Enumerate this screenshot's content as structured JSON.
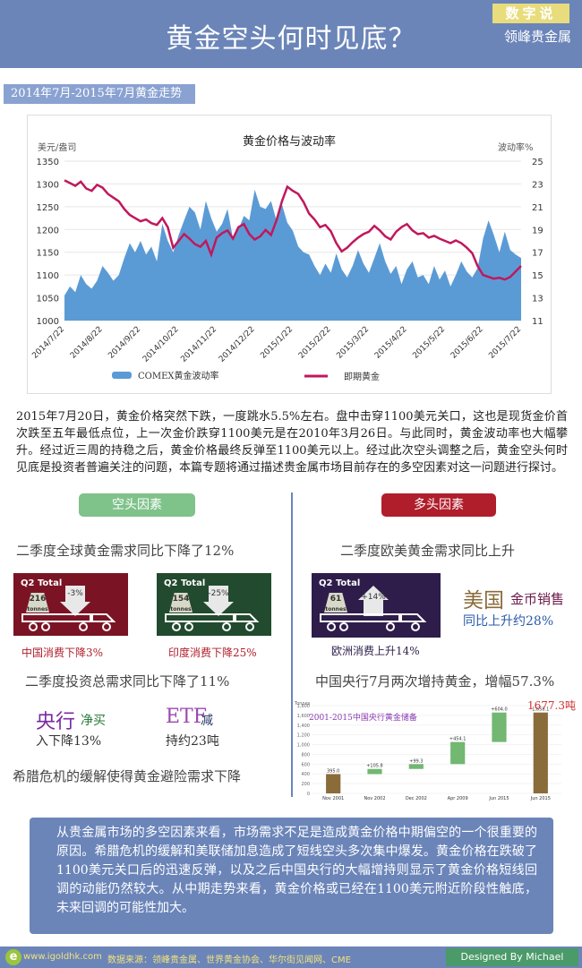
{
  "header": {
    "title": "黄金空头何时见底？",
    "badge": "数字说",
    "brand": "领峰贵金属"
  },
  "period_label": "2014年7月-2015年7月黄金走势",
  "chart_data": [
    {
      "type": "area+line",
      "title": "黄金价格与波动率",
      "ylabel_left": "美元/盎司",
      "ylabel_right": "波动率%",
      "left_ticks": [
        "1350",
        "1300",
        "1250",
        "1200",
        "1150",
        "1100",
        "1050",
        "1000"
      ],
      "right_ticks": [
        "25",
        "23",
        "21",
        "19",
        "17",
        "15",
        "13",
        "11"
      ],
      "ylim_left": [
        1000,
        1350
      ],
      "ylim_right": [
        11,
        25
      ],
      "x_ticks": [
        "2014/7/22",
        "2014/8/22",
        "2014/9/22",
        "2014/10/22",
        "2014/11/22",
        "2014/12/22",
        "2015/1/22",
        "2015/2/22",
        "2015/3/22",
        "2015/4/22",
        "2015/5/22",
        "2015/6/22",
        "2015/7/22"
      ],
      "series": [
        {
          "name": "COMEX黄金波动率",
          "kind": "area",
          "axis": "right",
          "color": "#5b9bd5",
          "values": [
            13.2,
            14.0,
            13.5,
            15.0,
            14.2,
            13.8,
            14.5,
            15.8,
            15.2,
            14.5,
            15.0,
            16.5,
            17.8,
            17.0,
            18.0,
            16.8,
            17.5,
            16.2,
            19.5,
            18.0,
            17.0,
            18.5,
            19.8,
            21.0,
            20.5,
            19.0,
            21.5,
            20.0,
            18.8,
            19.5,
            20.8,
            18.2,
            19.0,
            20.2,
            19.8,
            22.5,
            21.0,
            20.8,
            21.5,
            19.8,
            21.2,
            19.6,
            18.9,
            17.5,
            17.0,
            16.8,
            15.8,
            15.0,
            16.0,
            15.2,
            16.9,
            15.5,
            14.8,
            15.8,
            17.2,
            16.0,
            15.2,
            16.5,
            17.8,
            16.2,
            15.1,
            15.8,
            14.2,
            15.5,
            16.2,
            14.8,
            15.0,
            14.2,
            15.8,
            14.6,
            15.4,
            14.0,
            15.0,
            16.2,
            15.3,
            14.8,
            15.6,
            18.2,
            19.8,
            18.5,
            17.0,
            18.8,
            17.2,
            16.8,
            16.5
          ]
        },
        {
          "name": "即期黄金",
          "kind": "line",
          "axis": "left",
          "color": "#c0185c",
          "values": [
            1308,
            1302,
            1296,
            1305,
            1290,
            1285,
            1298,
            1292,
            1278,
            1270,
            1262,
            1245,
            1232,
            1225,
            1218,
            1222,
            1214,
            1210,
            1225,
            1205,
            1160,
            1175,
            1190,
            1180,
            1168,
            1162,
            1175,
            1145,
            1182,
            1192,
            1198,
            1180,
            1205,
            1212,
            1190,
            1178,
            1185,
            1199,
            1188,
            1220,
            1262,
            1294,
            1285,
            1278,
            1260,
            1235,
            1222,
            1205,
            1210,
            1196,
            1170,
            1152,
            1160,
            1172,
            1182,
            1190,
            1195,
            1208,
            1198,
            1185,
            1178,
            1195,
            1205,
            1212,
            1198,
            1190,
            1192,
            1182,
            1186,
            1180,
            1175,
            1170,
            1176,
            1170,
            1160,
            1148,
            1120,
            1100,
            1096,
            1092,
            1094,
            1090,
            1096,
            1108,
            1120
          ]
        }
      ],
      "legend": "bottom"
    },
    {
      "type": "waterfall",
      "title": "2001-2015中国央行黄金储备",
      "ylabel": "Tonnes",
      "y_ticks": [
        "1,800",
        "1,600",
        "1,400",
        "1,200",
        "1,000",
        "800",
        "600",
        "400",
        "200",
        "0"
      ],
      "ylim": [
        0,
        1800
      ],
      "categories": [
        "Nov 2001",
        "Nov 2002",
        "Dec 2002",
        "Apr 2009",
        "Jun 2015",
        "Jun 2015"
      ],
      "bar_labels": [
        "395.0",
        "+105.8",
        "+99.3",
        "+454.1",
        "+604.0",
        "1,658.1"
      ],
      "values": [
        395.0,
        105.8,
        99.3,
        454.1,
        604.0,
        1658.1
      ],
      "callout": "1677.3吨"
    }
  ],
  "chart_legend": {
    "vol_label": "COMEX黄金波动率",
    "spot_label": "即期黄金"
  },
  "intro": "2015年7月20日，黄金价格突然下跌，一度跳水5.5%左右。盘中击穿1100美元关口，这也是现货金价首次跌至五年最低点位，上一次金价跌穿1100美元是在2010年3月26日。与此同时，黄金波动率也大幅攀升。经过近三周的持稳之后，黄金价格最终反弹至1100美元以上。经过此次空头调整之后，黄金空头何时见底是投资者普遍关注的问题，本篇专题将通过描述贵金属市场目前存在的多空因素对这一问题进行探讨。",
  "bear": {
    "title": "空头因素",
    "h1": "二季度全球黄金需求同比下降了12%",
    "cards": [
      {
        "q2": "Q2 Total",
        "tonnes": "216",
        "unit": "tonnes",
        "pct": "-3%",
        "caption": "中国消费下降3%"
      },
      {
        "q2": "Q2 Total",
        "tonnes": "154",
        "unit": "tonnes",
        "pct": "-25%",
        "caption": "印度消费下降25%"
      }
    ],
    "h2": "二季度投资总需求同比下降了11%",
    "cb_big": "央行",
    "cb_small": "净买",
    "cb_line2": "入下降13%",
    "etf_big": "ETF",
    "etf_small": "减",
    "etf_line2": "持约23吨",
    "h3": "希腊危机的缓解使得黄金避险需求下降"
  },
  "bull": {
    "title": "多头因素",
    "h1": "二季度欧美黄金需求同比上升",
    "card": {
      "q2": "Q2 Total",
      "tonnes": "61",
      "unit": "tonnes",
      "pct": "+14%",
      "caption": "欧洲消费上升14%"
    },
    "usa_big": "美国",
    "usa_coin": "金币销售",
    "usa_line2": "同比上升约28%",
    "h2": "中国央行7月两次增持黄金，增幅57.3%"
  },
  "summary": "从贵金属市场的多空因素来看，市场需求不足是造成黄金价格中期偏空的一个很重要的原因。希腊危机的缓解和美联储加息造成了短线空头多次集中爆发。黄金价格在跌破了1100美元关口后的迅速反弹，以及之后中国央行的大幅增持则显示了黄金价格短线回调的动能仍然较大。从中期走势来看，黄金价格或已经在1100美元附近阶段性触底，未来回调的可能性加大。",
  "footer": {
    "logo": "e",
    "site": "www.igoldhk.com",
    "sources": "数据来源：领峰贵金属、世界黄金协会、华尔街见闻网、CME",
    "designer": "Designed By Michael Wang"
  }
}
